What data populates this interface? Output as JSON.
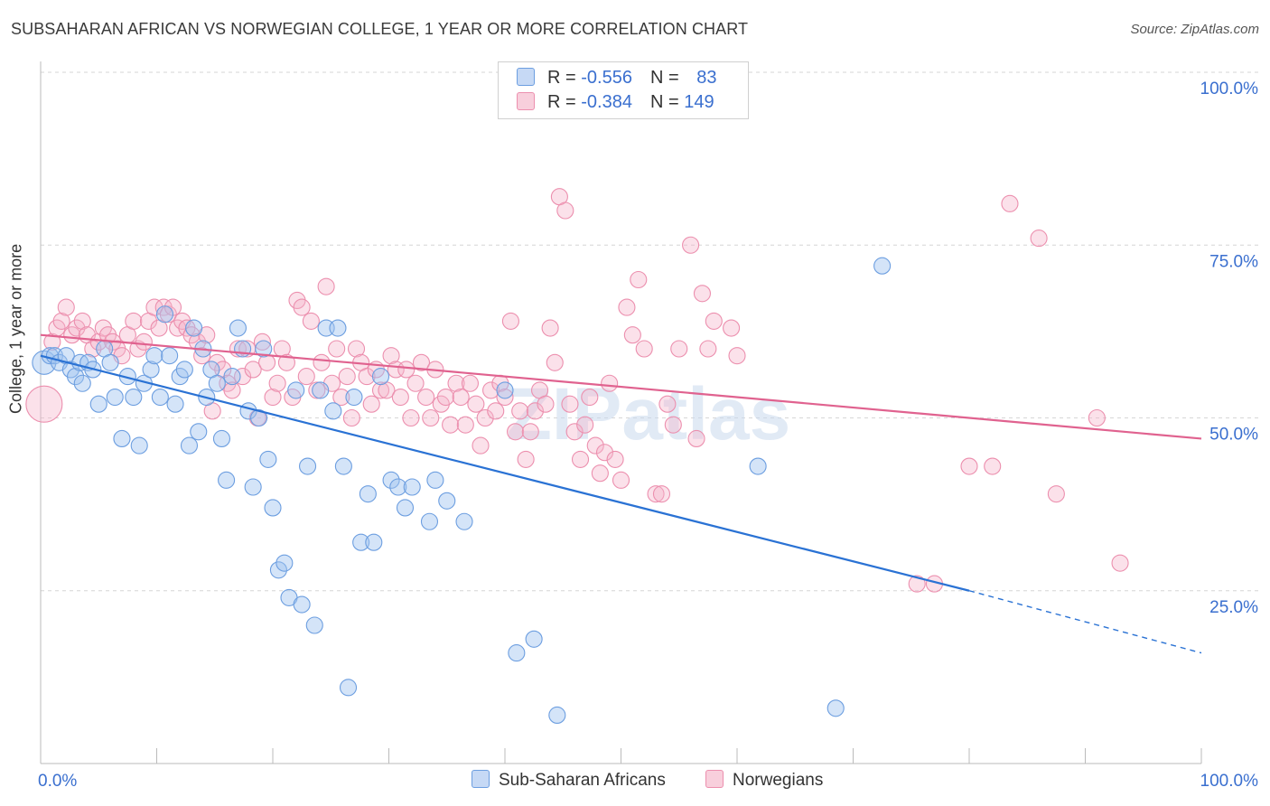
{
  "title": "SUBSAHARAN AFRICAN VS NORWEGIAN COLLEGE, 1 YEAR OR MORE CORRELATION CHART",
  "source": "Source: ZipAtlas.com",
  "watermark": "ZIPatlas",
  "legend": {
    "rows": [
      {
        "r_label": "R = ",
        "r_value": "-0.556",
        "n_label": "N = ",
        "n_value": "83"
      },
      {
        "r_label": "R = ",
        "r_value": "-0.384",
        "n_label": "N = ",
        "n_value": "149"
      }
    ]
  },
  "bottom_legend": [
    "Sub-Saharan Africans",
    "Norwegians"
  ],
  "colors": {
    "blue": "#6c9ee0",
    "blue_line": "#2a72d4",
    "pink": "#ec8fae",
    "pink_line": "#e0628f",
    "tick_text": "#3a6fcf"
  },
  "chart_data": {
    "type": "scatter",
    "title": "SUBSAHARAN AFRICAN VS NORWEGIAN COLLEGE, 1 YEAR OR MORE CORRELATION CHART",
    "xlabel": "",
    "ylabel": "College, 1 year or more",
    "xlim": [
      0,
      100
    ],
    "ylim": [
      0,
      100
    ],
    "x_tick_labels": [
      "0.0%",
      "100.0%"
    ],
    "y_tick_labels": [
      "100.0%",
      "75.0%",
      "50.0%",
      "25.0%"
    ],
    "y_ticks": [
      100,
      75,
      50,
      25
    ],
    "grid": true,
    "series": [
      {
        "name": "Sub-Saharan Africans",
        "r": -0.556,
        "n": 83,
        "trend": {
          "x0": 0,
          "y0": 59,
          "x1": 80,
          "y1": 25,
          "dash_to_x": 100,
          "dash_to_y": 16
        },
        "points": [
          [
            0.3,
            58
          ],
          [
            0.8,
            59
          ],
          [
            1.2,
            59
          ],
          [
            1.6,
            58
          ],
          [
            2.2,
            59
          ],
          [
            2.6,
            57
          ],
          [
            3.0,
            56
          ],
          [
            3.4,
            58
          ],
          [
            3.6,
            55
          ],
          [
            4.1,
            58
          ],
          [
            4.5,
            57
          ],
          [
            5.0,
            52
          ],
          [
            5.5,
            60
          ],
          [
            6.0,
            58
          ],
          [
            6.4,
            53
          ],
          [
            7.0,
            47
          ],
          [
            7.5,
            56
          ],
          [
            8.0,
            53
          ],
          [
            8.5,
            46
          ],
          [
            8.9,
            55
          ],
          [
            9.5,
            57
          ],
          [
            9.8,
            59
          ],
          [
            10.3,
            53
          ],
          [
            10.7,
            65
          ],
          [
            11.1,
            59
          ],
          [
            11.6,
            52
          ],
          [
            12.0,
            56
          ],
          [
            12.4,
            57
          ],
          [
            12.8,
            46
          ],
          [
            13.2,
            63
          ],
          [
            13.6,
            48
          ],
          [
            14.0,
            60
          ],
          [
            14.3,
            53
          ],
          [
            14.7,
            57
          ],
          [
            15.2,
            55
          ],
          [
            15.6,
            47
          ],
          [
            16.0,
            41
          ],
          [
            16.5,
            56
          ],
          [
            17.0,
            63
          ],
          [
            17.4,
            60
          ],
          [
            17.9,
            51
          ],
          [
            18.3,
            40
          ],
          [
            18.8,
            50
          ],
          [
            19.2,
            60
          ],
          [
            19.6,
            44
          ],
          [
            20.0,
            37
          ],
          [
            20.5,
            28
          ],
          [
            21.0,
            29
          ],
          [
            21.4,
            24
          ],
          [
            22.0,
            54
          ],
          [
            22.5,
            23
          ],
          [
            23.0,
            43
          ],
          [
            23.6,
            20
          ],
          [
            24.1,
            54
          ],
          [
            24.6,
            63
          ],
          [
            25.2,
            51
          ],
          [
            25.6,
            63
          ],
          [
            26.1,
            43
          ],
          [
            26.5,
            11
          ],
          [
            27.0,
            53
          ],
          [
            27.6,
            32
          ],
          [
            28.2,
            39
          ],
          [
            28.7,
            32
          ],
          [
            29.3,
            56
          ],
          [
            30.2,
            41
          ],
          [
            30.8,
            40
          ],
          [
            31.4,
            37
          ],
          [
            32.0,
            40
          ],
          [
            33.5,
            35
          ],
          [
            34.0,
            41
          ],
          [
            35.0,
            38
          ],
          [
            36.5,
            35
          ],
          [
            40.0,
            54
          ],
          [
            41.0,
            16
          ],
          [
            42.5,
            18
          ],
          [
            44.5,
            7
          ],
          [
            61.8,
            43
          ],
          [
            68.5,
            8
          ],
          [
            72.5,
            72
          ]
        ]
      },
      {
        "name": "Norwegians",
        "r": -0.384,
        "n": 149,
        "trend": {
          "x0": 0,
          "y0": 62,
          "x1": 100,
          "y1": 47
        },
        "points": [
          [
            0.3,
            52
          ],
          [
            1.0,
            61
          ],
          [
            1.4,
            63
          ],
          [
            1.8,
            64
          ],
          [
            2.2,
            66
          ],
          [
            2.7,
            62
          ],
          [
            3.1,
            63
          ],
          [
            3.6,
            64
          ],
          [
            4.0,
            62
          ],
          [
            4.5,
            60
          ],
          [
            5.0,
            61
          ],
          [
            5.4,
            63
          ],
          [
            5.8,
            62
          ],
          [
            6.2,
            61
          ],
          [
            6.6,
            60
          ],
          [
            7.0,
            59
          ],
          [
            7.5,
            62
          ],
          [
            8.0,
            64
          ],
          [
            8.4,
            60
          ],
          [
            8.9,
            61
          ],
          [
            9.3,
            64
          ],
          [
            9.8,
            66
          ],
          [
            10.2,
            63
          ],
          [
            10.6,
            66
          ],
          [
            11.0,
            65
          ],
          [
            11.4,
            66
          ],
          [
            11.8,
            63
          ],
          [
            12.2,
            64
          ],
          [
            12.6,
            63
          ],
          [
            13.0,
            62
          ],
          [
            13.5,
            61
          ],
          [
            13.9,
            59
          ],
          [
            14.3,
            62
          ],
          [
            14.8,
            51
          ],
          [
            15.2,
            58
          ],
          [
            15.7,
            57
          ],
          [
            16.1,
            55
          ],
          [
            16.5,
            54
          ],
          [
            17.0,
            60
          ],
          [
            17.4,
            56
          ],
          [
            17.8,
            60
          ],
          [
            18.3,
            57
          ],
          [
            18.7,
            50
          ],
          [
            19.1,
            61
          ],
          [
            19.5,
            58
          ],
          [
            20.0,
            53
          ],
          [
            20.4,
            55
          ],
          [
            20.8,
            60
          ],
          [
            21.2,
            58
          ],
          [
            21.7,
            53
          ],
          [
            22.1,
            67
          ],
          [
            22.5,
            66
          ],
          [
            22.9,
            56
          ],
          [
            23.3,
            64
          ],
          [
            23.8,
            54
          ],
          [
            24.2,
            58
          ],
          [
            24.6,
            69
          ],
          [
            25.1,
            55
          ],
          [
            25.5,
            60
          ],
          [
            25.9,
            53
          ],
          [
            26.4,
            56
          ],
          [
            26.8,
            50
          ],
          [
            27.2,
            60
          ],
          [
            27.6,
            58
          ],
          [
            28.1,
            56
          ],
          [
            28.5,
            52
          ],
          [
            28.9,
            57
          ],
          [
            29.3,
            54
          ],
          [
            29.8,
            54
          ],
          [
            30.2,
            59
          ],
          [
            30.6,
            57
          ],
          [
            31.0,
            53
          ],
          [
            31.5,
            57
          ],
          [
            31.9,
            50
          ],
          [
            32.3,
            55
          ],
          [
            32.8,
            58
          ],
          [
            33.2,
            53
          ],
          [
            33.6,
            50
          ],
          [
            34.0,
            57
          ],
          [
            34.5,
            52
          ],
          [
            34.9,
            53
          ],
          [
            35.3,
            49
          ],
          [
            35.8,
            55
          ],
          [
            36.2,
            53
          ],
          [
            36.6,
            49
          ],
          [
            37.0,
            55
          ],
          [
            37.5,
            52
          ],
          [
            37.9,
            46
          ],
          [
            38.3,
            50
          ],
          [
            38.8,
            54
          ],
          [
            39.2,
            51
          ],
          [
            39.6,
            55
          ],
          [
            40.0,
            53
          ],
          [
            40.5,
            64
          ],
          [
            40.9,
            48
          ],
          [
            41.3,
            51
          ],
          [
            41.8,
            44
          ],
          [
            42.2,
            48
          ],
          [
            42.6,
            51
          ],
          [
            43.0,
            54
          ],
          [
            43.5,
            52
          ],
          [
            43.9,
            63
          ],
          [
            44.3,
            58
          ],
          [
            44.7,
            82
          ],
          [
            45.2,
            80
          ],
          [
            45.6,
            52
          ],
          [
            46.0,
            48
          ],
          [
            46.5,
            44
          ],
          [
            46.9,
            49
          ],
          [
            47.3,
            53
          ],
          [
            47.8,
            46
          ],
          [
            48.2,
            42
          ],
          [
            48.6,
            45
          ],
          [
            49.0,
            55
          ],
          [
            49.5,
            44
          ],
          [
            50.0,
            41
          ],
          [
            50.5,
            66
          ],
          [
            51.0,
            62
          ],
          [
            51.5,
            70
          ],
          [
            52.0,
            60
          ],
          [
            53.0,
            39
          ],
          [
            53.5,
            39
          ],
          [
            54.0,
            52
          ],
          [
            54.5,
            49
          ],
          [
            55.0,
            60
          ],
          [
            56.0,
            75
          ],
          [
            56.5,
            47
          ],
          [
            57.0,
            68
          ],
          [
            57.5,
            60
          ],
          [
            58.0,
            64
          ],
          [
            59.5,
            63
          ],
          [
            60.0,
            59
          ],
          [
            75.5,
            26
          ],
          [
            77.0,
            26
          ],
          [
            80.0,
            43
          ],
          [
            82.0,
            43
          ],
          [
            83.5,
            81
          ],
          [
            86.0,
            76
          ],
          [
            87.5,
            39
          ],
          [
            91.0,
            50
          ],
          [
            93.0,
            29
          ]
        ]
      }
    ]
  }
}
